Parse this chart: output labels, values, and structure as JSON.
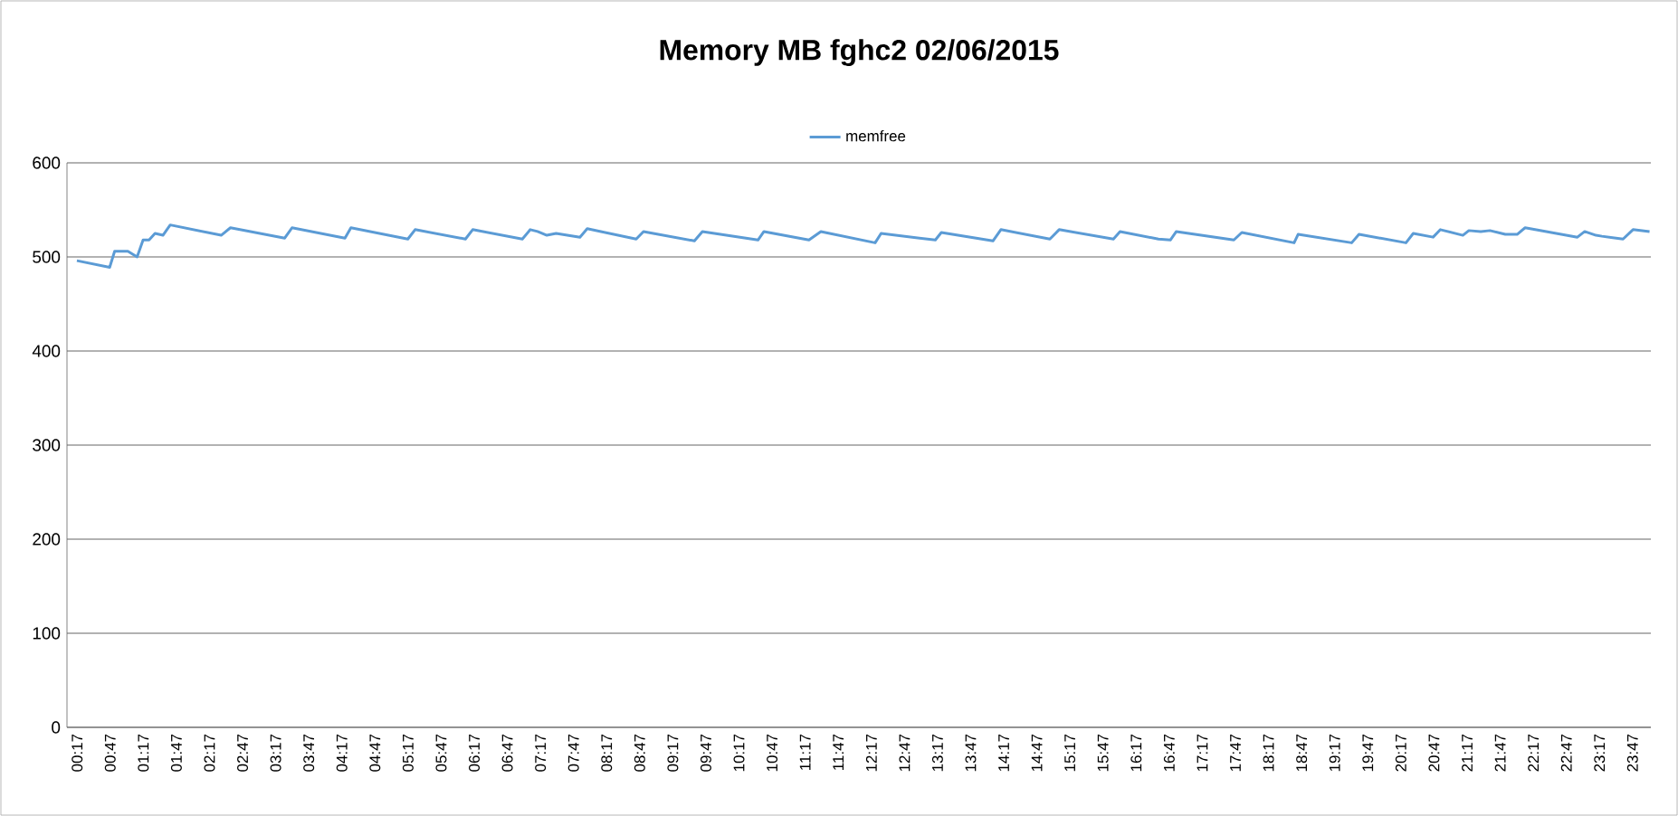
{
  "chart_data": {
    "type": "line",
    "title": "Memory MB fghc2  02/06/2015",
    "series": [
      {
        "name": "memfree",
        "color": "#5b9bd5",
        "x": [
          0.28,
          0.775,
          0.85,
          1.05,
          1.19,
          1.28,
          1.37,
          1.46,
          1.58,
          1.69,
          2.46,
          2.6,
          3.42,
          3.53,
          4.33,
          4.42,
          5.28,
          5.39,
          6.15,
          6.26,
          7.01,
          7.13,
          7.24,
          7.38,
          7.52,
          7.88,
          7.99,
          8.73,
          8.84,
          9.61,
          9.73,
          10.57,
          10.66,
          11.34,
          11.52,
          12.34,
          12.43,
          13.25,
          13.34,
          14.12,
          14.24,
          14.98,
          15.12,
          15.94,
          16.04,
          16.62,
          16.8,
          16.89,
          17.76,
          17.88,
          18.67,
          18.73,
          19.54,
          19.65,
          20.36,
          20.47,
          20.77,
          20.88,
          21.22,
          21.31,
          21.49,
          21.63,
          21.86,
          22.04,
          22.16,
          22.95,
          23.06,
          23.23,
          23.32,
          23.64,
          23.79,
          24.04
        ],
        "values": [
          496,
          489,
          506,
          506,
          500,
          518,
          518,
          525,
          523,
          534,
          523,
          531,
          520,
          531,
          520,
          531,
          519,
          529,
          519,
          529,
          519,
          529,
          527,
          523,
          525,
          521,
          530,
          519,
          527,
          517,
          527,
          518,
          527,
          518,
          527,
          515,
          525,
          518,
          526,
          517,
          529,
          519,
          529,
          519,
          527,
          519,
          518,
          527,
          518,
          526,
          515,
          524,
          515,
          524,
          515,
          525,
          521,
          529,
          523,
          528,
          527,
          528,
          524,
          524,
          531,
          521,
          527,
          523,
          522,
          519,
          529,
          527
        ]
      }
    ],
    "xlim": [
      0.13,
      24.06
    ],
    "ylim": [
      0,
      600
    ],
    "yticks": [
      0,
      100,
      200,
      300,
      400,
      500,
      600
    ],
    "xticks": [
      {
        "value": 0.2833,
        "label": "00:17"
      },
      {
        "value": 0.7833,
        "label": "00:47"
      },
      {
        "value": 1.2833,
        "label": "01:17"
      },
      {
        "value": 1.7833,
        "label": "01:47"
      },
      {
        "value": 2.2833,
        "label": "02:17"
      },
      {
        "value": 2.7833,
        "label": "02:47"
      },
      {
        "value": 3.2833,
        "label": "03:17"
      },
      {
        "value": 3.7833,
        "label": "03:47"
      },
      {
        "value": 4.2833,
        "label": "04:17"
      },
      {
        "value": 4.7833,
        "label": "04:47"
      },
      {
        "value": 5.2833,
        "label": "05:17"
      },
      {
        "value": 5.7833,
        "label": "05:47"
      },
      {
        "value": 6.2833,
        "label": "06:17"
      },
      {
        "value": 6.7833,
        "label": "06:47"
      },
      {
        "value": 7.2833,
        "label": "07:17"
      },
      {
        "value": 7.7833,
        "label": "07:47"
      },
      {
        "value": 8.2833,
        "label": "08:17"
      },
      {
        "value": 8.7833,
        "label": "08:47"
      },
      {
        "value": 9.2833,
        "label": "09:17"
      },
      {
        "value": 9.7833,
        "label": "09:47"
      },
      {
        "value": 10.2833,
        "label": "10:17"
      },
      {
        "value": 10.7833,
        "label": "10:47"
      },
      {
        "value": 11.2833,
        "label": "11:17"
      },
      {
        "value": 11.7833,
        "label": "11:47"
      },
      {
        "value": 12.2833,
        "label": "12:17"
      },
      {
        "value": 12.7833,
        "label": "12:47"
      },
      {
        "value": 13.2833,
        "label": "13:17"
      },
      {
        "value": 13.7833,
        "label": "13:47"
      },
      {
        "value": 14.2833,
        "label": "14:17"
      },
      {
        "value": 14.7833,
        "label": "14:47"
      },
      {
        "value": 15.2833,
        "label": "15:17"
      },
      {
        "value": 15.7833,
        "label": "15:47"
      },
      {
        "value": 16.2833,
        "label": "16:17"
      },
      {
        "value": 16.7833,
        "label": "16:47"
      },
      {
        "value": 17.2833,
        "label": "17:17"
      },
      {
        "value": 17.7833,
        "label": "17:47"
      },
      {
        "value": 18.2833,
        "label": "18:17"
      },
      {
        "value": 18.7833,
        "label": "18:47"
      },
      {
        "value": 19.2833,
        "label": "19:17"
      },
      {
        "value": 19.7833,
        "label": "19:47"
      },
      {
        "value": 20.2833,
        "label": "20:17"
      },
      {
        "value": 20.7833,
        "label": "20:47"
      },
      {
        "value": 21.2833,
        "label": "21:17"
      },
      {
        "value": 21.7833,
        "label": "21:47"
      },
      {
        "value": 22.2833,
        "label": "22:17"
      },
      {
        "value": 22.7833,
        "label": "22:47"
      },
      {
        "value": 23.2833,
        "label": "23:17"
      },
      {
        "value": 23.7833,
        "label": "23:47"
      }
    ],
    "grid": "y",
    "legend": "top",
    "marker": "none",
    "line_style": "solid"
  }
}
